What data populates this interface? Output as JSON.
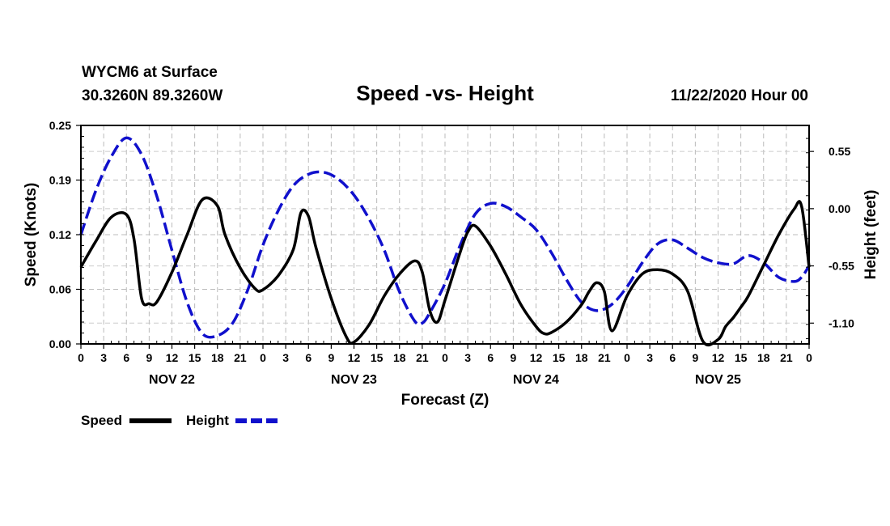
{
  "header": {
    "station": "WYCM6 at Surface",
    "coords": "30.3260N 89.3260W",
    "title": "Speed -vs- Height",
    "date": "11/22/2020 Hour 00"
  },
  "legend": [
    {
      "label": "Speed",
      "color": "#000000",
      "style": "solid"
    },
    {
      "label": "Height",
      "color": "#1010cc",
      "style": "dashed"
    }
  ],
  "chart_data": {
    "type": "line",
    "title": "Speed -vs- Height",
    "xlabel": "Forecast (Z)",
    "ylabel_left": "Speed (Knots)",
    "ylabel_right": "Height (feet)",
    "x_hour_ticks": [
      "0",
      "3",
      "6",
      "9",
      "12",
      "15",
      "18",
      "21",
      "0",
      "3",
      "6",
      "9",
      "12",
      "15",
      "18",
      "21",
      "0",
      "3",
      "6",
      "9",
      "12",
      "15",
      "18",
      "21",
      "0",
      "3",
      "6",
      "9",
      "12",
      "15",
      "18",
      "21",
      "0"
    ],
    "day_labels": [
      "NOV 22",
      "NOV 23",
      "NOV 24",
      "NOV 25"
    ],
    "y_left": {
      "min": 0.0,
      "max": 0.25,
      "ticks": [
        "0.00",
        "0.06",
        "0.12",
        "0.19",
        "0.25"
      ]
    },
    "y_right": {
      "min": -1.3,
      "max": 0.8,
      "ticks": [
        "0.55",
        "0.00",
        "-0.55",
        "-1.10"
      ]
    },
    "grid": true,
    "x_range_hours": [
      0,
      96
    ],
    "series": [
      {
        "name": "Speed",
        "axis": "left",
        "color": "#000000",
        "x": [
          0,
          2,
          4,
          6,
          7,
          8,
          9,
          10,
          12,
          14,
          16,
          18,
          19,
          21,
          23,
          24,
          26,
          28,
          29,
          30,
          31,
          33,
          35,
          36,
          38,
          40,
          42,
          44,
          45,
          46,
          47,
          48,
          50,
          51,
          52,
          54,
          56,
          58,
          60,
          61,
          62,
          64,
          66,
          67,
          68,
          69,
          70,
          72,
          74,
          76,
          78,
          80,
          82,
          84,
          85,
          86,
          87,
          88,
          90,
          92,
          94,
          95,
          96
        ],
        "y": [
          0.088,
          0.118,
          0.145,
          0.148,
          0.12,
          0.052,
          0.046,
          0.048,
          0.082,
          0.125,
          0.165,
          0.158,
          0.125,
          0.087,
          0.063,
          0.062,
          0.078,
          0.108,
          0.15,
          0.146,
          0.11,
          0.052,
          0.008,
          0.002,
          0.022,
          0.055,
          0.08,
          0.095,
          0.082,
          0.038,
          0.025,
          0.05,
          0.105,
          0.128,
          0.135,
          0.112,
          0.08,
          0.045,
          0.02,
          0.012,
          0.013,
          0.025,
          0.045,
          0.06,
          0.07,
          0.06,
          0.015,
          0.055,
          0.08,
          0.085,
          0.08,
          0.06,
          0.003,
          0.005,
          0.02,
          0.03,
          0.042,
          0.055,
          0.09,
          0.125,
          0.154,
          0.158,
          0.088
        ]
      },
      {
        "name": "Height",
        "axis": "right",
        "color": "#1010cc",
        "x": [
          0,
          2,
          4,
          6,
          8,
          10,
          12,
          14,
          16,
          18,
          20,
          22,
          24,
          26,
          28,
          30,
          32,
          34,
          36,
          38,
          40,
          42,
          44,
          45,
          46,
          48,
          50,
          52,
          54,
          56,
          58,
          60,
          62,
          64,
          66,
          68,
          70,
          72,
          74,
          76,
          78,
          80,
          82,
          84,
          86,
          88,
          90,
          92,
          94,
          95,
          96
        ],
        "y": [
          -0.25,
          0.18,
          0.5,
          0.68,
          0.52,
          0.12,
          -0.4,
          -0.9,
          -1.2,
          -1.22,
          -1.1,
          -0.78,
          -0.35,
          -0.02,
          0.22,
          0.33,
          0.35,
          0.28,
          0.13,
          -0.1,
          -0.4,
          -0.8,
          -1.08,
          -1.1,
          -1.0,
          -0.72,
          -0.35,
          -0.05,
          0.05,
          0.02,
          -0.08,
          -0.2,
          -0.42,
          -0.68,
          -0.9,
          -0.98,
          -0.92,
          -0.75,
          -0.52,
          -0.34,
          -0.3,
          -0.38,
          -0.47,
          -0.52,
          -0.53,
          -0.45,
          -0.52,
          -0.66,
          -0.7,
          -0.66,
          -0.55
        ]
      }
    ]
  }
}
